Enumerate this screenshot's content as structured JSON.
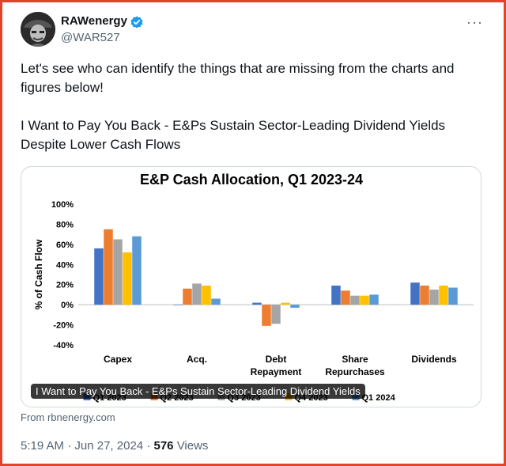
{
  "colors": {
    "frame_border": "#e2432b",
    "verified_badge": "#1d9bf0",
    "text_primary": "#0f1419",
    "text_secondary": "#536471"
  },
  "author": {
    "display_name": "RAWenergy",
    "handle": "@WAR527",
    "verified_icon": "verified-badge-icon",
    "more_icon": "more-options-icon"
  },
  "tweet": {
    "line1": "Let's see who can identify the things that are missing from the charts and figures below!",
    "line2": "I Want to Pay You Back - E&Ps Sustain Sector-Leading Dividend Yields Despite Lower Cash Flows"
  },
  "card": {
    "caption": "I Want to Pay You Back - E&Ps Sustain Sector-Leading Dividend Yields",
    "source": "From rbnenergy.com"
  },
  "meta": {
    "time": "5:19 AM",
    "separator": "·",
    "date": "Jun 27, 2024",
    "views_count": "576",
    "views_label": "Views"
  },
  "chart_data": {
    "type": "bar",
    "title": "E&P Cash Allocation, Q1 2023-24",
    "ylabel": "% of Cash Flow",
    "xlabel": "",
    "ylim": [
      -40,
      100
    ],
    "yticks": [
      -40,
      -20,
      0,
      20,
      40,
      60,
      80,
      100
    ],
    "ytick_labels": [
      "-40%",
      "-20%",
      "0%",
      "20%",
      "40%",
      "60%",
      "80%",
      "100%"
    ],
    "categories": [
      [
        "Capex"
      ],
      [
        "Acq."
      ],
      [
        "Debt",
        "Repayment"
      ],
      [
        "Share",
        "Repurchases"
      ],
      [
        "Dividends"
      ]
    ],
    "series": [
      {
        "name": "Q1 2023",
        "color": "#4472c4",
        "values": [
          56,
          0,
          2,
          19,
          22
        ]
      },
      {
        "name": "Q2 2023",
        "color": "#ed7d31",
        "values": [
          75,
          16,
          -21,
          14,
          19
        ]
      },
      {
        "name": "Q3 2023",
        "color": "#a5a5a5",
        "values": [
          65,
          21,
          -19,
          9,
          15
        ]
      },
      {
        "name": "Q4 2023",
        "color": "#ffc000",
        "values": [
          52,
          19,
          2,
          9,
          19
        ]
      },
      {
        "name": "Q1 2024",
        "color": "#5b9bd5",
        "values": [
          68,
          6,
          -3,
          10,
          17
        ]
      }
    ],
    "grid": false,
    "legend": "bottom"
  }
}
